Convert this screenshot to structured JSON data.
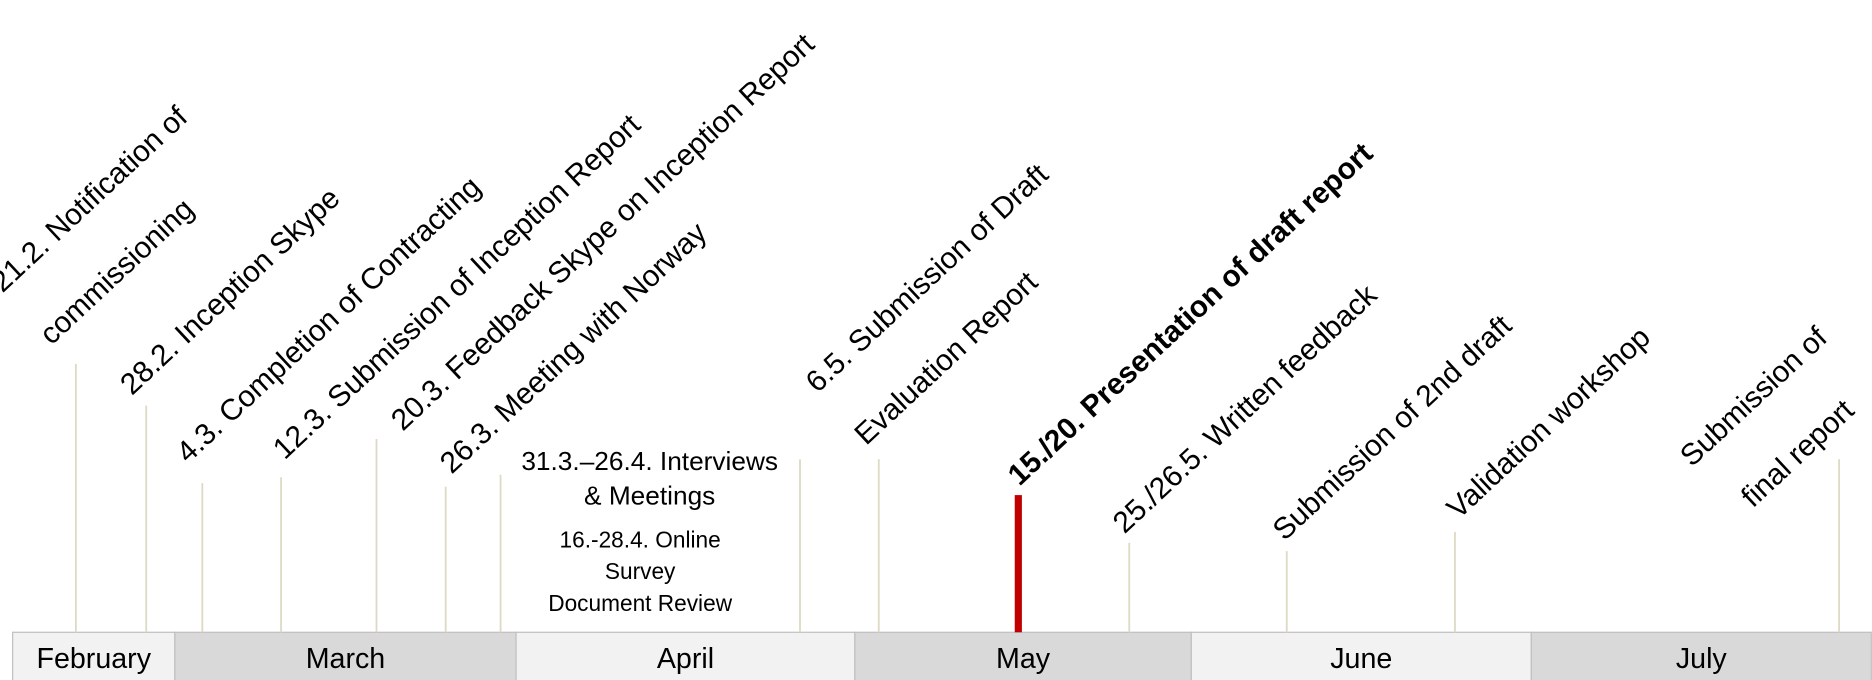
{
  "months": [
    "February",
    "March",
    "April",
    "May",
    "June",
    "July"
  ],
  "milestones": [
    {
      "lines": [
        "21.2. Notification of",
        "commissioning"
      ]
    },
    {
      "lines": [
        "28.2. Inception Skype"
      ]
    },
    {
      "lines": [
        "4.3. Completion of Contracting"
      ]
    },
    {
      "lines": [
        "12.3. Submission of Inception Report"
      ]
    },
    {
      "lines": [
        "20.3. Feedback Skype on Inception Report"
      ]
    },
    {
      "lines": [
        "26.3. Meeting with Norway"
      ]
    },
    {
      "lines": [
        "6.5. Submission of Draft",
        "Evaluation Report"
      ]
    },
    {
      "lines": [
        "15./20. Presentation of draft report"
      ]
    },
    {
      "lines": [
        "25./26.5. Written feedback"
      ]
    },
    {
      "lines": [
        "Submission of 2nd draft"
      ]
    },
    {
      "lines": [
        "Validation workshop"
      ]
    },
    {
      "lines": [
        "Submission of",
        "final report"
      ]
    }
  ],
  "activities": {
    "interviews": [
      "31.3.–26.4. Interviews",
      "& Meetings"
    ],
    "other": [
      "16.-28.4. Online",
      "Survey",
      "Document Review"
    ]
  }
}
